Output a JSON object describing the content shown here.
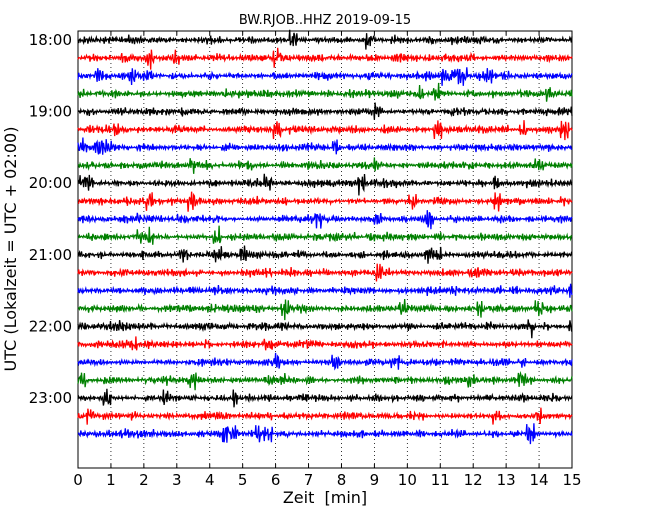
{
  "chart_data": {
    "type": "line",
    "title": "BW.RJOB..HHZ 2019-09-15",
    "xlabel": "Zeit  [min]",
    "ylabel": "UTC (Lokalzeit = UTC + 02:00)",
    "xlim": [
      0,
      15
    ],
    "x_ticks": [
      "0",
      "1",
      "2",
      "3",
      "4",
      "5",
      "6",
      "7",
      "8",
      "9",
      "10",
      "11",
      "12",
      "13",
      "14",
      "15"
    ],
    "y_tick_labels": [
      "18:00",
      "19:00",
      "20:00",
      "21:00",
      "22:00",
      "23:00"
    ],
    "grid": "vertical dotted lines at each minute",
    "trace_colors": [
      "#000000",
      "#ff0000",
      "#0000ff",
      "#008000"
    ],
    "trace_start_times": [
      "18:00",
      "18:15",
      "18:30",
      "18:45",
      "19:00",
      "19:15",
      "19:30",
      "19:45",
      "20:00",
      "20:15",
      "20:30",
      "20:45",
      "21:00",
      "21:15",
      "21:30",
      "21:45",
      "22:00",
      "22:15",
      "22:30",
      "22:45",
      "23:00",
      "23:15",
      "23:30"
    ]
  }
}
